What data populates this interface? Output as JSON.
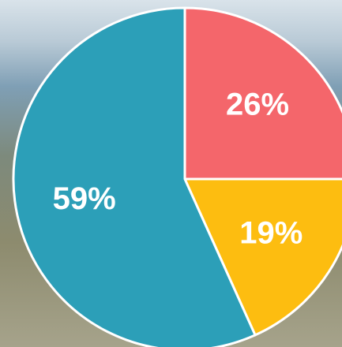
{
  "chart_data": {
    "type": "pie",
    "categories": [
      null,
      null,
      null
    ],
    "values": [
      26,
      19,
      59
    ],
    "value_labels": [
      "26%",
      "19%",
      "59%"
    ],
    "colors": [
      "#f4666b",
      "#fdbd10",
      "#2c9fb8"
    ]
  }
}
